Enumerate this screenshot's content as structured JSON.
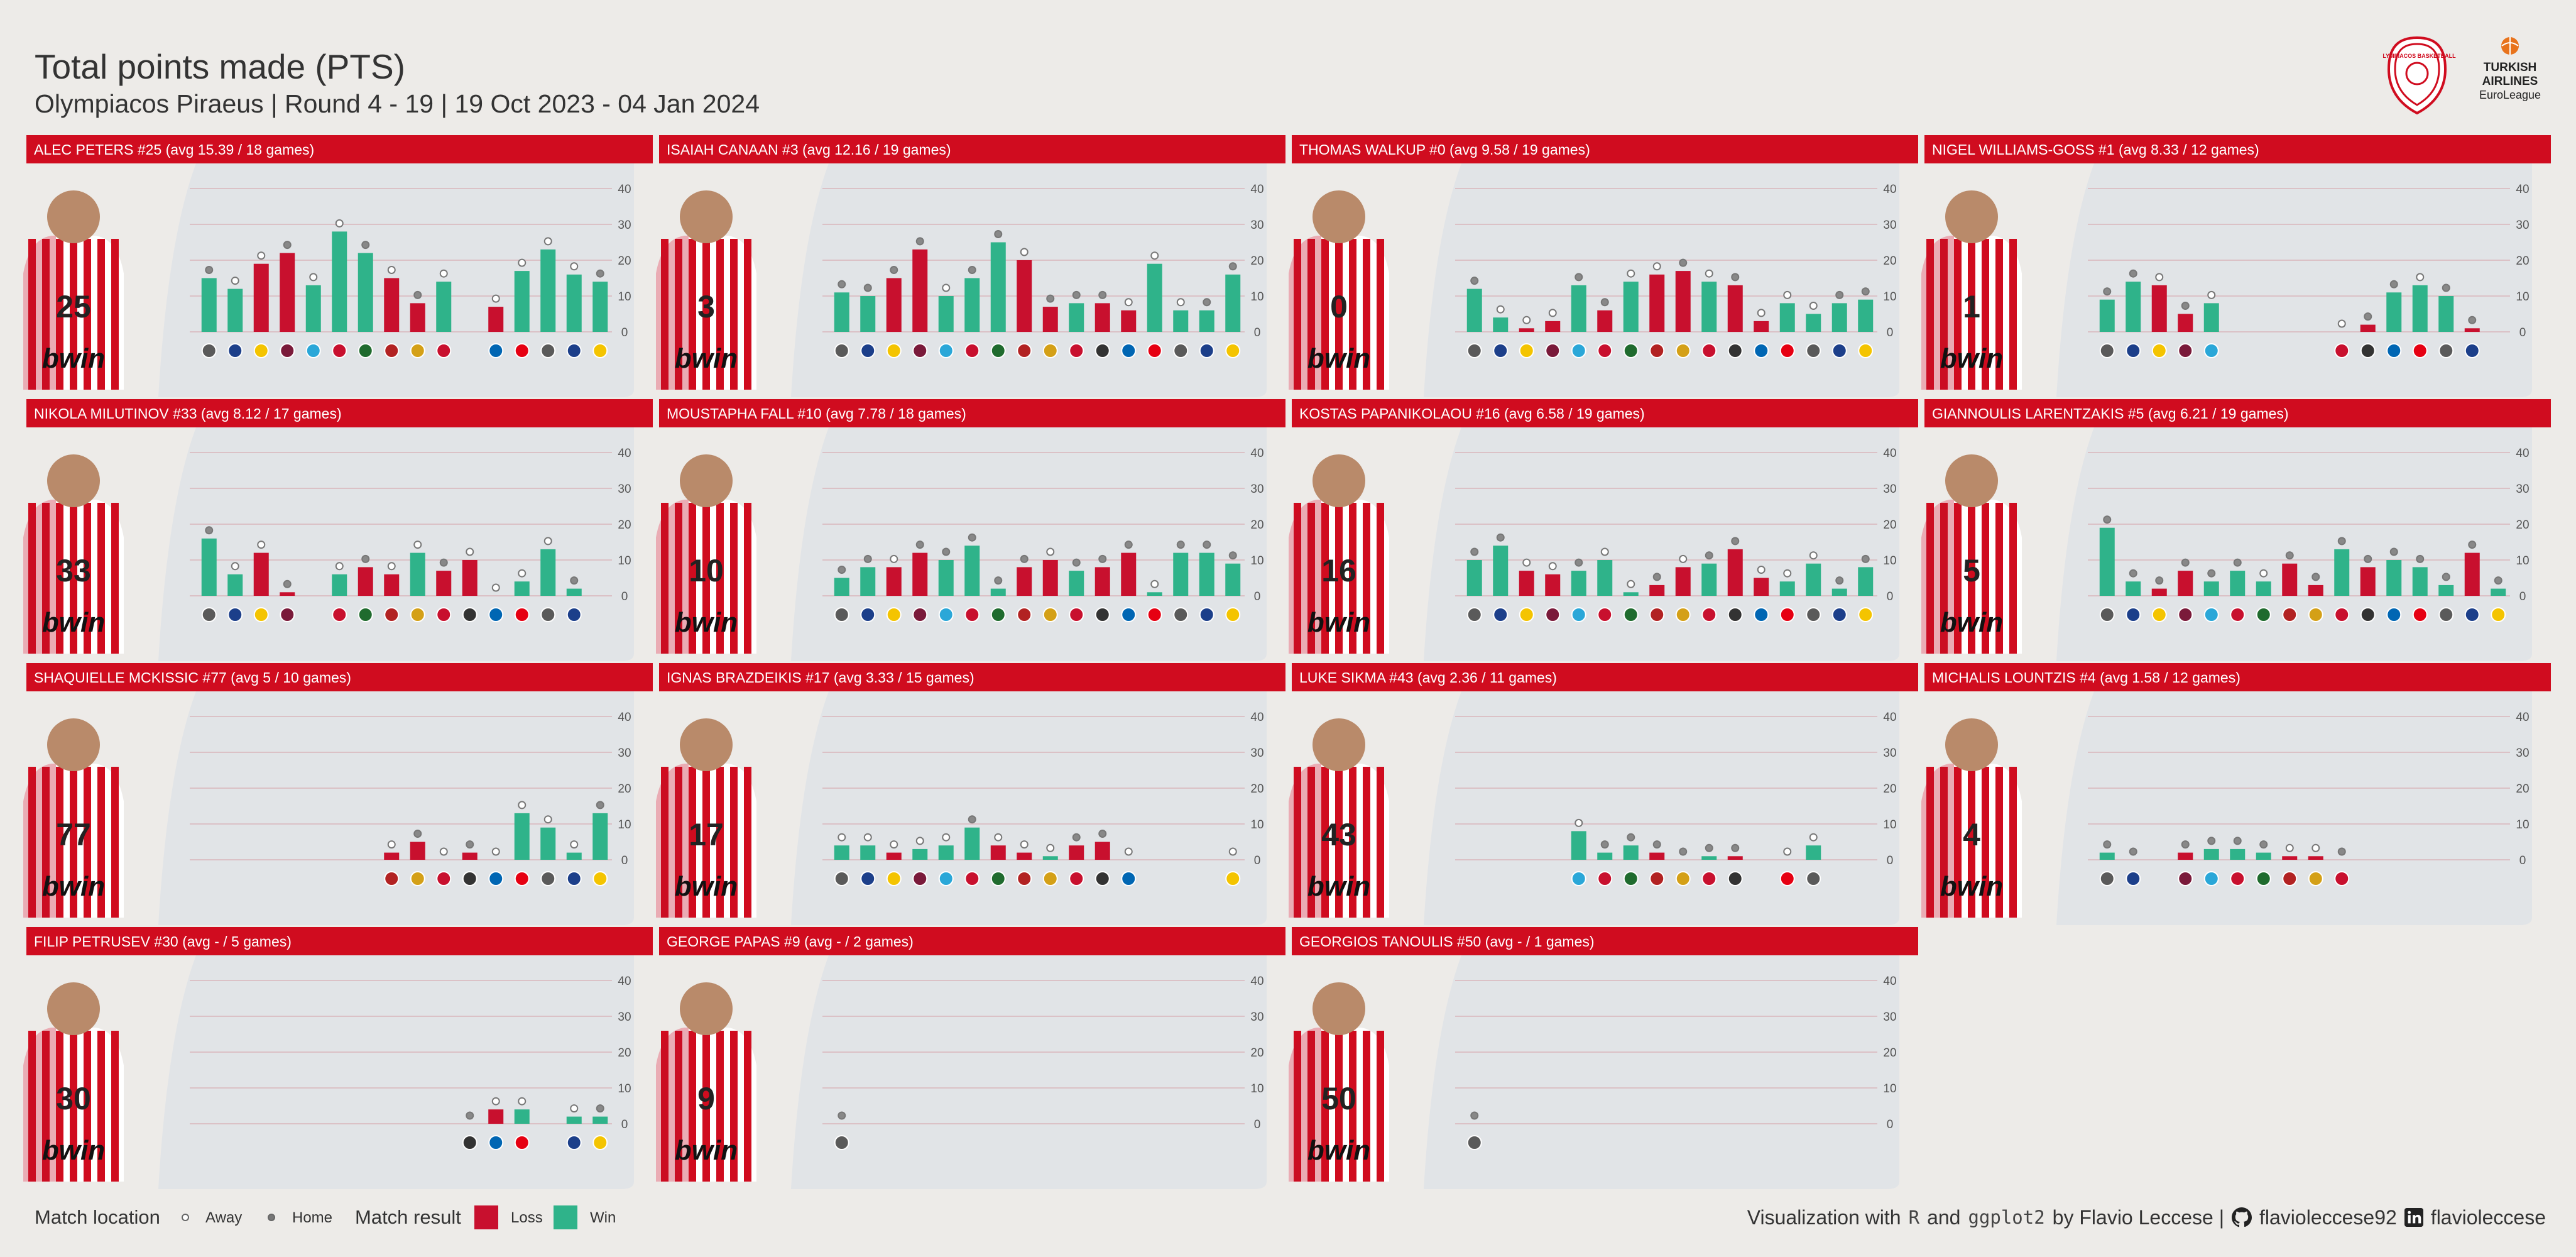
{
  "header": {
    "title": "Total points made (PTS)",
    "subtitle": "Olympiacos Piraeus | Round 4 - 19 | 19 Oct 2023 - 04 Jan 2024"
  },
  "logos": {
    "club": "OLYMPIACOS BASKETBALL",
    "league_line1": "TURKISH",
    "league_line2": "AIRLINES",
    "league_line3": "EuroLeague"
  },
  "colors": {
    "loss": "#C8102E",
    "win": "#2FB38A",
    "header_bg": "#D00C1F",
    "gridline": "#D9B5BC",
    "panel_bg": "#E1E4E7"
  },
  "legend": {
    "location_title": "Match location",
    "away": "Away",
    "home": "Home",
    "result_title": "Match result",
    "loss": "Loss",
    "win": "Win"
  },
  "caption": {
    "text1": "Visualization with",
    "r": "R",
    "and": "and",
    "pkg": "ggplot2",
    "by": "by Flavio Leccese |",
    "github_icon": "github-icon",
    "github": "flavioleccese92",
    "linkedin_icon": "linkedin-icon",
    "linkedin": "flavioleccese"
  },
  "chart_data": {
    "type": "bar",
    "facet": "player",
    "x": "round (4-19), opponent logo below each bar",
    "y_ticks": [
      0,
      10,
      20,
      30,
      40
    ],
    "ylim": [
      0,
      40
    ],
    "point_marker": "location (open = Away, filled = Home)",
    "fill": "result (Loss / Win)",
    "panels": [
      {
        "title": "ALEC PETERS #25 (avg 15.39 / 18 games)",
        "number": "25",
        "values": [
          15,
          12,
          19,
          22,
          13,
          28,
          22,
          15,
          8,
          14,
          null,
          7,
          17,
          23,
          16,
          14
        ],
        "results": [
          "W",
          "W",
          "L",
          "L",
          "W",
          "W",
          "W",
          "L",
          "L",
          "W",
          null,
          "L",
          "W",
          "W",
          "W",
          "W"
        ],
        "location": [
          "H",
          "A",
          "A",
          "H",
          "A",
          "A",
          "H",
          "A",
          "H",
          "A",
          null,
          "A",
          "A",
          "A",
          "A",
          "H"
        ]
      },
      {
        "title": "ISAIAH CANAAN #3 (avg 12.16 / 19 games)",
        "number": "3",
        "values": [
          11,
          10,
          15,
          23,
          10,
          15,
          25,
          20,
          7,
          8,
          8,
          6,
          19,
          6,
          6,
          16
        ],
        "results": [
          "W",
          "W",
          "L",
          "L",
          "W",
          "W",
          "W",
          "L",
          "L",
          "W",
          "L",
          "L",
          "W",
          "W",
          "W",
          "W"
        ],
        "location": [
          "H",
          "H",
          "H",
          "H",
          "A",
          "H",
          "H",
          "A",
          "H",
          "H",
          "H",
          "A",
          "A",
          "A",
          "H",
          "H"
        ]
      },
      {
        "title": "THOMAS WALKUP #0 (avg 9.58 / 19 games)",
        "number": "0",
        "values": [
          12,
          4,
          1,
          3,
          13,
          6,
          14,
          16,
          17,
          14,
          13,
          3,
          8,
          5,
          8,
          9
        ],
        "results": [
          "W",
          "W",
          "L",
          "L",
          "W",
          "L",
          "W",
          "L",
          "L",
          "W",
          "L",
          "L",
          "W",
          "W",
          "W",
          "W"
        ],
        "location": [
          "H",
          "A",
          "A",
          "A",
          "H",
          "H",
          "A",
          "A",
          "H",
          "A",
          "H",
          "A",
          "A",
          "A",
          "H",
          "H"
        ]
      },
      {
        "title": "NIGEL WILLIAMS-GOSS #1 (avg 8.33 / 12 games)",
        "number": "1",
        "values": [
          9,
          14,
          13,
          5,
          8,
          null,
          null,
          null,
          null,
          0,
          2,
          11,
          13,
          10,
          1,
          null
        ],
        "results": [
          "W",
          "W",
          "L",
          "L",
          "W",
          null,
          null,
          null,
          null,
          "L",
          "L",
          "W",
          "W",
          "W",
          "L",
          null
        ],
        "location": [
          "H",
          "H",
          "A",
          "H",
          "A",
          null,
          null,
          null,
          null,
          "A",
          "H",
          "H",
          "A",
          "H",
          "H",
          null
        ]
      },
      {
        "title": "NIKOLA MILUTINOV #33 (avg 8.12 / 17 games)",
        "number": "33",
        "values": [
          16,
          6,
          12,
          1,
          null,
          6,
          8,
          6,
          12,
          7,
          10,
          0,
          4,
          13,
          2,
          null
        ],
        "results": [
          "W",
          "W",
          "L",
          "L",
          null,
          "W",
          "L",
          "L",
          "W",
          "L",
          "L",
          "W",
          "W",
          "W",
          "W",
          null
        ],
        "location": [
          "H",
          "A",
          "A",
          "H",
          null,
          "A",
          "H",
          "A",
          "A",
          "H",
          "A",
          "A",
          "A",
          "A",
          "H",
          null
        ]
      },
      {
        "title": "MOUSTAPHA FALL #10 (avg 7.78 / 18 games)",
        "number": "10",
        "values": [
          5,
          8,
          8,
          12,
          10,
          14,
          2,
          8,
          10,
          7,
          8,
          12,
          1,
          12,
          12,
          9
        ],
        "results": [
          "W",
          "W",
          "L",
          "L",
          "W",
          "W",
          "W",
          "L",
          "L",
          "W",
          "L",
          "L",
          "W",
          "W",
          "W",
          "W"
        ],
        "location": [
          "H",
          "H",
          "A",
          "H",
          "H",
          "H",
          "H",
          "H",
          "A",
          "H",
          "H",
          "H",
          "A",
          "H",
          "H",
          "H"
        ]
      },
      {
        "title": "KOSTAS PAPANIKOLAOU #16 (avg 6.58 / 19 games)",
        "number": "16",
        "values": [
          10,
          14,
          7,
          6,
          7,
          10,
          1,
          3,
          8,
          9,
          13,
          5,
          4,
          9,
          2,
          8
        ],
        "results": [
          "W",
          "W",
          "L",
          "L",
          "W",
          "W",
          "W",
          "L",
          "L",
          "W",
          "L",
          "L",
          "W",
          "W",
          "W",
          "W"
        ],
        "location": [
          "H",
          "H",
          "A",
          "A",
          "H",
          "A",
          "A",
          "H",
          "A",
          "H",
          "H",
          "A",
          "A",
          "A",
          "H",
          "H"
        ]
      },
      {
        "title": "GIANNOULIS LARENTZAKIS #5 (avg 6.21 / 19 games)",
        "number": "5",
        "values": [
          19,
          4,
          2,
          7,
          4,
          7,
          4,
          9,
          3,
          13,
          8,
          10,
          8,
          3,
          12,
          2
        ],
        "results": [
          "W",
          "W",
          "L",
          "L",
          "W",
          "W",
          "W",
          "L",
          "L",
          "W",
          "L",
          "W",
          "W",
          "W",
          "L",
          "W"
        ],
        "location": [
          "H",
          "H",
          "H",
          "H",
          "H",
          "H",
          "A",
          "H",
          "H",
          "H",
          "H",
          "H",
          "H",
          "H",
          "H",
          "H"
        ]
      },
      {
        "title": "SHAQUIELLE MCKISSIC #77 (avg 5 / 10 games)",
        "number": "77",
        "values": [
          null,
          null,
          null,
          null,
          null,
          null,
          null,
          2,
          5,
          0,
          2,
          0,
          13,
          9,
          2,
          13
        ],
        "results": [
          null,
          null,
          null,
          null,
          null,
          null,
          null,
          "L",
          "L",
          "W",
          "L",
          "W",
          "W",
          "W",
          "W",
          "W"
        ],
        "location": [
          null,
          null,
          null,
          null,
          null,
          null,
          null,
          "A",
          "H",
          "A",
          "H",
          "A",
          "A",
          "A",
          "A",
          "H"
        ]
      },
      {
        "title": "IGNAS BRAZDEIKIS #17 (avg 3.33 / 15 games)",
        "number": "17",
        "values": [
          4,
          4,
          2,
          3,
          4,
          9,
          4,
          2,
          1,
          4,
          5,
          0,
          null,
          null,
          null,
          0
        ],
        "results": [
          "W",
          "W",
          "L",
          "W",
          "W",
          "W",
          "L",
          "L",
          "W",
          "L",
          "L",
          "W",
          null,
          null,
          null,
          "L"
        ],
        "location": [
          "A",
          "A",
          "A",
          "A",
          "A",
          "H",
          "A",
          "A",
          "A",
          "H",
          "H",
          "A",
          null,
          null,
          null,
          "A"
        ]
      },
      {
        "title": "LUKE SIKMA #43 (avg 2.36 / 11 games)",
        "number": "43",
        "values": [
          null,
          null,
          null,
          null,
          8,
          2,
          4,
          2,
          0,
          1,
          1,
          null,
          0,
          4,
          null,
          null
        ],
        "results": [
          null,
          null,
          null,
          null,
          "W",
          "W",
          "W",
          "L",
          "L",
          "W",
          "L",
          null,
          "W",
          "W",
          null,
          null
        ],
        "location": [
          null,
          null,
          null,
          null,
          "A",
          "H",
          "H",
          "H",
          "H",
          "H",
          "H",
          null,
          "A",
          "A",
          null,
          null
        ]
      },
      {
        "title": "MICHALIS LOUNTZIS #4 (avg 1.58 / 12 games)",
        "number": "4",
        "values": [
          2,
          0,
          null,
          2,
          3,
          3,
          2,
          1,
          1,
          0,
          null,
          null,
          null,
          null,
          null,
          null
        ],
        "results": [
          "W",
          "W",
          null,
          "L",
          "W",
          "W",
          "W",
          "L",
          "L",
          "W",
          null,
          null,
          null,
          null,
          null,
          null
        ],
        "location": [
          "H",
          "H",
          null,
          "H",
          "H",
          "H",
          "H",
          "A",
          "A",
          "H",
          null,
          null,
          null,
          null,
          null,
          null
        ]
      },
      {
        "title": "FILIP PETRUSEV #30 (avg - / 5 games)",
        "number": "30",
        "values": [
          null,
          null,
          null,
          null,
          null,
          null,
          null,
          null,
          null,
          null,
          0,
          4,
          4,
          null,
          2,
          2
        ],
        "results": [
          null,
          null,
          null,
          null,
          null,
          null,
          null,
          null,
          null,
          null,
          "W",
          "L",
          "W",
          null,
          "W",
          "W"
        ],
        "location": [
          null,
          null,
          null,
          null,
          null,
          null,
          null,
          null,
          null,
          null,
          "H",
          "A",
          "A",
          null,
          "A",
          "H"
        ]
      },
      {
        "title": "GEORGE PAPAS #9 (avg - / 2 games)",
        "number": "9",
        "values": [
          0
        ],
        "results": [
          "W"
        ],
        "location": [
          "H"
        ]
      },
      {
        "title": "GEORGIOS TANOULIS #50 (avg - / 1 games)",
        "number": "50",
        "values": [
          0
        ],
        "results": [
          "W"
        ],
        "location": [
          "H"
        ]
      }
    ]
  }
}
